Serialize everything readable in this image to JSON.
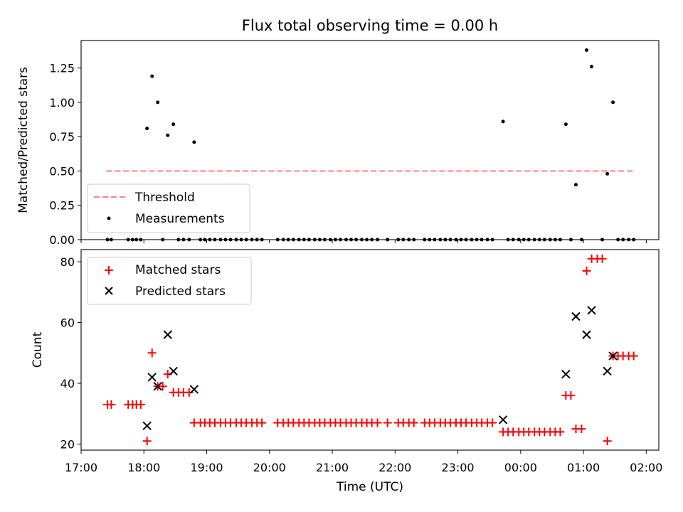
{
  "title": "Flux total observing time = 0.00 h",
  "colors": {
    "threshold": "#ff7f7f",
    "measurement": "#000000",
    "matched": "#ff0000",
    "predicted": "#000000",
    "axis": "#000000",
    "background": "#ffffff"
  },
  "chart_data": [
    {
      "type": "scatter",
      "panel": "top",
      "xlabel": "",
      "ylabel": "Matched/Predicted stars",
      "ylim": [
        0,
        1.45
      ],
      "yticks": [
        "0.00",
        "0.25",
        "0.50",
        "0.75",
        "1.00",
        "1.25"
      ],
      "legend": {
        "placement": "lower-left",
        "entries": [
          "Threshold",
          "Measurements"
        ]
      },
      "threshold": {
        "name": "Threshold",
        "x": [
          17.4,
          1.8
        ],
        "y": 0.5
      },
      "series": [
        {
          "name": "Measurements",
          "points": [
            [
              17.42,
              0
            ],
            [
              17.48,
              0
            ],
            [
              17.75,
              0
            ],
            [
              17.82,
              0
            ],
            [
              17.88,
              0
            ],
            [
              17.95,
              0
            ],
            [
              18.05,
              0.81
            ],
            [
              18.13,
              1.19
            ],
            [
              18.22,
              1.0
            ],
            [
              18.3,
              0
            ],
            [
              18.38,
              0.76
            ],
            [
              18.47,
              0.84
            ],
            [
              18.55,
              0
            ],
            [
              18.63,
              0
            ],
            [
              18.72,
              0
            ],
            [
              18.8,
              0.71
            ],
            [
              18.9,
              0
            ],
            [
              18.97,
              0
            ],
            [
              19.05,
              0
            ],
            [
              19.13,
              0
            ],
            [
              19.22,
              0
            ],
            [
              19.3,
              0
            ],
            [
              19.38,
              0
            ],
            [
              19.47,
              0
            ],
            [
              19.55,
              0
            ],
            [
              19.63,
              0
            ],
            [
              19.72,
              0
            ],
            [
              19.8,
              0
            ],
            [
              19.88,
              0
            ],
            [
              20.13,
              0
            ],
            [
              20.22,
              0
            ],
            [
              20.3,
              0
            ],
            [
              20.38,
              0
            ],
            [
              20.47,
              0
            ],
            [
              20.55,
              0
            ],
            [
              20.63,
              0
            ],
            [
              20.72,
              0
            ],
            [
              20.8,
              0
            ],
            [
              20.88,
              0
            ],
            [
              20.97,
              0
            ],
            [
              21.05,
              0
            ],
            [
              21.13,
              0
            ],
            [
              21.22,
              0
            ],
            [
              21.3,
              0
            ],
            [
              21.38,
              0
            ],
            [
              21.47,
              0
            ],
            [
              21.55,
              0
            ],
            [
              21.63,
              0
            ],
            [
              21.72,
              0
            ],
            [
              21.88,
              0
            ],
            [
              22.05,
              0
            ],
            [
              22.13,
              0
            ],
            [
              22.22,
              0
            ],
            [
              22.3,
              0
            ],
            [
              22.47,
              0
            ],
            [
              22.55,
              0
            ],
            [
              22.63,
              0
            ],
            [
              22.72,
              0
            ],
            [
              22.8,
              0
            ],
            [
              22.88,
              0
            ],
            [
              22.97,
              0
            ],
            [
              23.05,
              0
            ],
            [
              23.13,
              0
            ],
            [
              23.22,
              0
            ],
            [
              23.3,
              0
            ],
            [
              23.38,
              0
            ],
            [
              23.47,
              0
            ],
            [
              23.55,
              0
            ],
            [
              23.72,
              0.86
            ],
            [
              23.8,
              0
            ],
            [
              23.88,
              0
            ],
            [
              23.97,
              0
            ],
            [
              24.05,
              0
            ],
            [
              24.13,
              0
            ],
            [
              24.22,
              0
            ],
            [
              24.3,
              0
            ],
            [
              24.38,
              0
            ],
            [
              24.47,
              0
            ],
            [
              24.55,
              0
            ],
            [
              24.63,
              0
            ],
            [
              24.72,
              0.84
            ],
            [
              24.8,
              0
            ],
            [
              24.88,
              0.4
            ],
            [
              24.97,
              0
            ],
            [
              25.05,
              1.38
            ],
            [
              25.13,
              1.26
            ],
            [
              25.3,
              0
            ],
            [
              25.38,
              0.48
            ],
            [
              25.47,
              1.0
            ],
            [
              25.55,
              0
            ],
            [
              25.63,
              0
            ],
            [
              25.72,
              0
            ],
            [
              25.8,
              0
            ]
          ]
        }
      ]
    },
    {
      "type": "scatter",
      "panel": "bottom",
      "xlabel": "Time (UTC)",
      "ylabel": "Count",
      "ylim": [
        18,
        84
      ],
      "yticks": [
        "20",
        "40",
        "60",
        "80"
      ],
      "xlim": [
        17.0,
        26.2
      ],
      "xticks": [
        "17:00",
        "18:00",
        "19:00",
        "20:00",
        "21:00",
        "22:00",
        "23:00",
        "00:00",
        "01:00",
        "02:00"
      ],
      "legend": {
        "placement": "upper-left",
        "entries": [
          "Matched stars",
          "Predicted stars"
        ]
      },
      "series": [
        {
          "name": "Matched stars",
          "marker": "plus",
          "points": [
            [
              17.42,
              33
            ],
            [
              17.48,
              33
            ],
            [
              17.75,
              33
            ],
            [
              17.82,
              33
            ],
            [
              17.88,
              33
            ],
            [
              17.95,
              33
            ],
            [
              18.05,
              21
            ],
            [
              18.13,
              50
            ],
            [
              18.22,
              39
            ],
            [
              18.3,
              39
            ],
            [
              18.38,
              43
            ],
            [
              18.47,
              37
            ],
            [
              18.55,
              37
            ],
            [
              18.63,
              37
            ],
            [
              18.72,
              37
            ],
            [
              18.8,
              27
            ],
            [
              18.9,
              27
            ],
            [
              18.97,
              27
            ],
            [
              19.05,
              27
            ],
            [
              19.13,
              27
            ],
            [
              19.22,
              27
            ],
            [
              19.3,
              27
            ],
            [
              19.38,
              27
            ],
            [
              19.47,
              27
            ],
            [
              19.55,
              27
            ],
            [
              19.63,
              27
            ],
            [
              19.72,
              27
            ],
            [
              19.8,
              27
            ],
            [
              19.88,
              27
            ],
            [
              20.13,
              27
            ],
            [
              20.22,
              27
            ],
            [
              20.3,
              27
            ],
            [
              20.38,
              27
            ],
            [
              20.47,
              27
            ],
            [
              20.55,
              27
            ],
            [
              20.63,
              27
            ],
            [
              20.72,
              27
            ],
            [
              20.8,
              27
            ],
            [
              20.88,
              27
            ],
            [
              20.97,
              27
            ],
            [
              21.05,
              27
            ],
            [
              21.13,
              27
            ],
            [
              21.22,
              27
            ],
            [
              21.3,
              27
            ],
            [
              21.38,
              27
            ],
            [
              21.47,
              27
            ],
            [
              21.55,
              27
            ],
            [
              21.63,
              27
            ],
            [
              21.72,
              27
            ],
            [
              21.88,
              27
            ],
            [
              22.05,
              27
            ],
            [
              22.13,
              27
            ],
            [
              22.22,
              27
            ],
            [
              22.3,
              27
            ],
            [
              22.47,
              27
            ],
            [
              22.55,
              27
            ],
            [
              22.63,
              27
            ],
            [
              22.72,
              27
            ],
            [
              22.8,
              27
            ],
            [
              22.88,
              27
            ],
            [
              22.97,
              27
            ],
            [
              23.05,
              27
            ],
            [
              23.13,
              27
            ],
            [
              23.22,
              27
            ],
            [
              23.3,
              27
            ],
            [
              23.38,
              27
            ],
            [
              23.47,
              27
            ],
            [
              23.55,
              27
            ],
            [
              23.72,
              24
            ],
            [
              23.8,
              24
            ],
            [
              23.88,
              24
            ],
            [
              23.97,
              24
            ],
            [
              24.05,
              24
            ],
            [
              24.13,
              24
            ],
            [
              24.22,
              24
            ],
            [
              24.3,
              24
            ],
            [
              24.38,
              24
            ],
            [
              24.47,
              24
            ],
            [
              24.55,
              24
            ],
            [
              24.63,
              24
            ],
            [
              24.72,
              36
            ],
            [
              24.8,
              36
            ],
            [
              24.88,
              25
            ],
            [
              24.97,
              25
            ],
            [
              25.05,
              77
            ],
            [
              25.13,
              81
            ],
            [
              25.22,
              81
            ],
            [
              25.3,
              81
            ],
            [
              25.38,
              21
            ],
            [
              25.47,
              49
            ],
            [
              25.55,
              49
            ],
            [
              25.63,
              49
            ],
            [
              25.72,
              49
            ],
            [
              25.8,
              49
            ]
          ]
        },
        {
          "name": "Predicted stars",
          "marker": "x",
          "points": [
            [
              18.05,
              26
            ],
            [
              18.13,
              42
            ],
            [
              18.22,
              39
            ],
            [
              18.38,
              56
            ],
            [
              18.47,
              44
            ],
            [
              18.8,
              38
            ],
            [
              23.72,
              28
            ],
            [
              24.72,
              43
            ],
            [
              24.88,
              62
            ],
            [
              25.05,
              56
            ],
            [
              25.13,
              64
            ],
            [
              25.38,
              44
            ],
            [
              25.47,
              49
            ]
          ]
        }
      ]
    }
  ]
}
